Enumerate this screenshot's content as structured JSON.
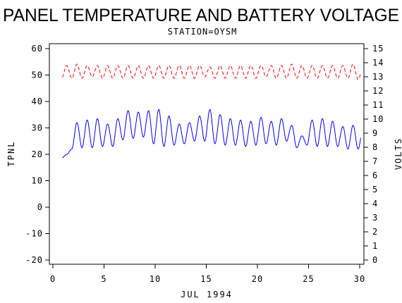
{
  "chart_data": {
    "type": "line",
    "title": "PANEL TEMPERATURE AND BATTERY VOLTAGE",
    "subtitle": "STATION=OYSM",
    "xlabel": "JUL 1994",
    "ylabel_left": "TPNL",
    "ylabel_right": "VOLTS",
    "xlim": [
      0,
      30
    ],
    "xticks": [
      "0",
      "5",
      "10",
      "15",
      "20",
      "25",
      "30"
    ],
    "ylim_left": [
      -20,
      60
    ],
    "yticks_left": [
      "-20",
      "-10",
      "0",
      "10",
      "20",
      "30",
      "40",
      "50",
      "60"
    ],
    "ylim_right": [
      0,
      15
    ],
    "yticks_right": [
      "0",
      "1",
      "2",
      "3",
      "4",
      "5",
      "6",
      "7",
      "8",
      "9",
      "10",
      "11",
      "12",
      "13",
      "14",
      "15"
    ],
    "grid": false,
    "colors": {
      "temperature": "#0000ff",
      "voltage": "#ff0000",
      "axes": "#000000"
    },
    "series": [
      {
        "axis": "left",
        "color": "#0000ff",
        "style": "solid",
        "daily": [
          {
            "day": 1,
            "min": 18.5,
            "max": 20
          },
          {
            "day": 2,
            "min": 22,
            "max": 32
          },
          {
            "day": 3,
            "min": 22.5,
            "max": 33
          },
          {
            "day": 4,
            "min": 22.5,
            "max": 33.5
          },
          {
            "day": 5,
            "min": 23,
            "max": 31.5
          },
          {
            "day": 6,
            "min": 23,
            "max": 33.5
          },
          {
            "day": 7,
            "min": 25.5,
            "max": 36.5
          },
          {
            "day": 8,
            "min": 26,
            "max": 36
          },
          {
            "day": 9,
            "min": 26.5,
            "max": 36.5
          },
          {
            "day": 10,
            "min": 24,
            "max": 37
          },
          {
            "day": 11,
            "min": 23,
            "max": 34.5
          },
          {
            "day": 12,
            "min": 23.5,
            "max": 31.5
          },
          {
            "day": 13,
            "min": 24,
            "max": 32
          },
          {
            "day": 14,
            "min": 25,
            "max": 34.5
          },
          {
            "day": 15,
            "min": 25,
            "max": 37
          },
          {
            "day": 16,
            "min": 24,
            "max": 35
          },
          {
            "day": 17,
            "min": 23.5,
            "max": 33.5
          },
          {
            "day": 18,
            "min": 23.5,
            "max": 33
          },
          {
            "day": 19,
            "min": 23,
            "max": 32.5
          },
          {
            "day": 20,
            "min": 23.5,
            "max": 34
          },
          {
            "day": 21,
            "min": 24,
            "max": 32.5
          },
          {
            "day": 22,
            "min": 23.5,
            "max": 33.5
          },
          {
            "day": 23,
            "min": 25,
            "max": 31
          },
          {
            "day": 24,
            "min": 22.5,
            "max": 27
          },
          {
            "day": 25,
            "min": 23.5,
            "max": 33
          },
          {
            "day": 26,
            "min": 23,
            "max": 33.5
          },
          {
            "day": 27,
            "min": 23,
            "max": 32.5
          },
          {
            "day": 28,
            "min": 23,
            "max": 30.5
          },
          {
            "day": 29,
            "min": 22,
            "max": 31
          },
          {
            "day": 30,
            "min": 22,
            "max": 30.5
          }
        ]
      },
      {
        "axis": "right",
        "color": "#ff0000",
        "style": "dashed",
        "daily": [
          {
            "day": 1,
            "min": 12.9,
            "max": 13.8
          },
          {
            "day": 2,
            "min": 12.9,
            "max": 13.9
          },
          {
            "day": 3,
            "min": 12.9,
            "max": 13.8
          },
          {
            "day": 4,
            "min": 13.0,
            "max": 13.8
          },
          {
            "day": 5,
            "min": 12.9,
            "max": 13.8
          },
          {
            "day": 6,
            "min": 12.9,
            "max": 13.8
          },
          {
            "day": 7,
            "min": 12.9,
            "max": 13.8
          },
          {
            "day": 8,
            "min": 12.9,
            "max": 13.8
          },
          {
            "day": 9,
            "min": 12.9,
            "max": 13.8
          },
          {
            "day": 10,
            "min": 12.9,
            "max": 13.8
          },
          {
            "day": 11,
            "min": 12.9,
            "max": 13.8
          },
          {
            "day": 12,
            "min": 12.9,
            "max": 13.8
          },
          {
            "day": 13,
            "min": 12.9,
            "max": 13.8
          },
          {
            "day": 14,
            "min": 12.9,
            "max": 13.8
          },
          {
            "day": 15,
            "min": 13.0,
            "max": 13.7
          },
          {
            "day": 16,
            "min": 12.9,
            "max": 13.8
          },
          {
            "day": 17,
            "min": 12.9,
            "max": 13.8
          },
          {
            "day": 18,
            "min": 12.9,
            "max": 13.8
          },
          {
            "day": 19,
            "min": 12.9,
            "max": 13.8
          },
          {
            "day": 20,
            "min": 12.9,
            "max": 13.8
          },
          {
            "day": 21,
            "min": 13.0,
            "max": 13.8
          },
          {
            "day": 22,
            "min": 12.9,
            "max": 13.8
          },
          {
            "day": 23,
            "min": 12.9,
            "max": 13.9
          },
          {
            "day": 24,
            "min": 12.9,
            "max": 13.8
          },
          {
            "day": 25,
            "min": 12.9,
            "max": 13.8
          },
          {
            "day": 26,
            "min": 12.9,
            "max": 13.8
          },
          {
            "day": 27,
            "min": 12.9,
            "max": 13.8
          },
          {
            "day": 28,
            "min": 12.9,
            "max": 13.8
          },
          {
            "day": 29,
            "min": 12.9,
            "max": 13.9
          },
          {
            "day": 30,
            "min": 12.8,
            "max": 13.8
          }
        ]
      }
    ]
  }
}
